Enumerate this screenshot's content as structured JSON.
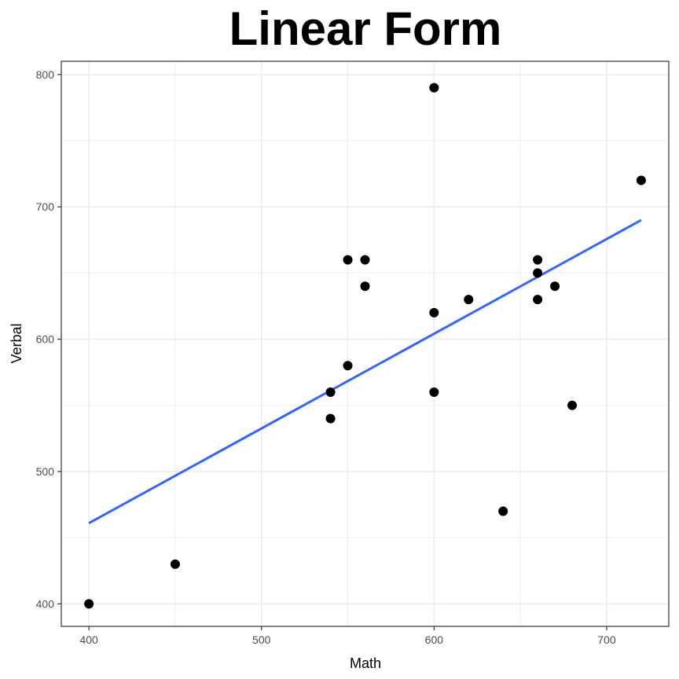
{
  "chart_data": {
    "type": "scatter",
    "title": "Linear Form",
    "xlabel": "Math",
    "ylabel": "Verbal",
    "xlim": [
      384,
      736
    ],
    "ylim": [
      383,
      810
    ],
    "x_ticks": [
      400,
      500,
      600,
      700
    ],
    "y_ticks": [
      400,
      500,
      600,
      700,
      800
    ],
    "x_minor_ticks": [
      450,
      550,
      650
    ],
    "y_minor_ticks": [
      450,
      550,
      650,
      750
    ],
    "grid": true,
    "legend": "none",
    "series": [
      {
        "points": [
          {
            "x": 400,
            "y": 400
          },
          {
            "x": 450,
            "y": 430
          },
          {
            "x": 540,
            "y": 540
          },
          {
            "x": 540,
            "y": 560
          },
          {
            "x": 550,
            "y": 580
          },
          {
            "x": 550,
            "y": 660
          },
          {
            "x": 560,
            "y": 640
          },
          {
            "x": 560,
            "y": 660
          },
          {
            "x": 600,
            "y": 560
          },
          {
            "x": 600,
            "y": 620
          },
          {
            "x": 600,
            "y": 790
          },
          {
            "x": 620,
            "y": 630
          },
          {
            "x": 640,
            "y": 470
          },
          {
            "x": 660,
            "y": 630
          },
          {
            "x": 660,
            "y": 650
          },
          {
            "x": 660,
            "y": 660
          },
          {
            "x": 670,
            "y": 640
          },
          {
            "x": 680,
            "y": 550
          },
          {
            "x": 720,
            "y": 720
          }
        ]
      }
    ],
    "trend_line": {
      "type": "linear",
      "x": [
        400,
        720
      ],
      "y": [
        461,
        690
      ]
    },
    "colors": {
      "points": "#000000",
      "trend_line": "#3366ff",
      "grid": "#ebebeb",
      "panel_border": "#333333"
    }
  }
}
